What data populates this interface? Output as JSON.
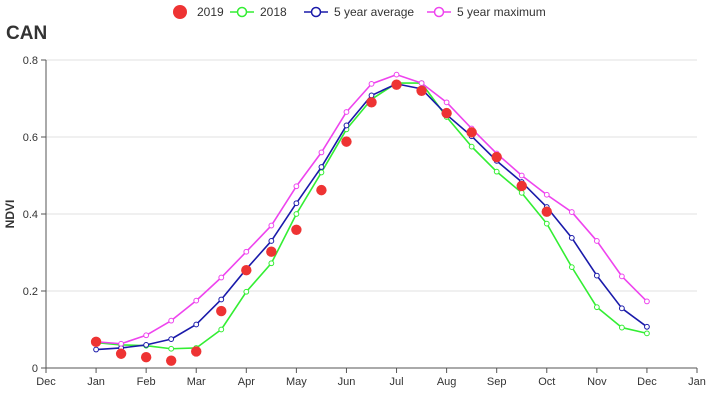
{
  "chart_data": {
    "type": "line",
    "title": "CAN",
    "xlabel": "",
    "ylabel": "NDVI",
    "ylim": [
      0,
      0.8
    ],
    "yticks": [
      "0",
      "0.2",
      "0.4",
      "0.6",
      "0.8"
    ],
    "ytick_values": [
      0,
      0.2,
      0.4,
      0.6,
      0.8
    ],
    "xlim": [
      0,
      13
    ],
    "xticks": [
      "Dec",
      "Jan",
      "Feb",
      "Mar",
      "Apr",
      "May",
      "Jun",
      "Jul",
      "Aug",
      "Sep",
      "Oct",
      "Nov",
      "Dec",
      "Jan"
    ],
    "grid": "horizontal",
    "legend_position": "top",
    "series": [
      {
        "name": "2019",
        "style": "dots",
        "color": "#ee3333",
        "x": [
          1,
          1.5,
          2,
          2.5,
          3,
          3.5,
          4,
          4.5,
          5,
          5.5,
          6,
          6.5,
          7,
          7.5,
          8,
          8.5,
          9,
          9.5,
          10
        ],
        "values": [
          0.068,
          0.037,
          0.028,
          0.019,
          0.043,
          0.148,
          0.254,
          0.302,
          0.359,
          0.462,
          0.588,
          0.69,
          0.736,
          0.72,
          0.662,
          0.612,
          0.548,
          0.473,
          0.406
        ]
      },
      {
        "name": "2018",
        "style": "line",
        "color": "#33ee33",
        "x": [
          1,
          1.5,
          2,
          2.5,
          3,
          3.5,
          4,
          4.5,
          5,
          5.5,
          6,
          6.5,
          7,
          7.5,
          8,
          8.5,
          9,
          9.5,
          10,
          10.5,
          11,
          11.5,
          12
        ],
        "values": [
          0.066,
          0.06,
          0.058,
          0.05,
          0.052,
          0.1,
          0.198,
          0.272,
          0.4,
          0.508,
          0.62,
          0.698,
          0.74,
          0.74,
          0.652,
          0.575,
          0.51,
          0.455,
          0.375,
          0.262,
          0.158,
          0.105,
          0.09
        ]
      },
      {
        "name": "5 year average",
        "style": "line",
        "color": "#1a1aaa",
        "x": [
          1,
          1.5,
          2,
          2.5,
          3,
          3.5,
          4,
          4.5,
          5,
          5.5,
          6,
          6.5,
          7,
          7.5,
          8,
          8.5,
          9,
          9.5,
          10,
          10.5,
          11,
          11.5,
          12
        ],
        "values": [
          0.048,
          0.052,
          0.06,
          0.075,
          0.113,
          0.178,
          0.257,
          0.33,
          0.428,
          0.522,
          0.63,
          0.708,
          0.738,
          0.725,
          0.658,
          0.602,
          0.538,
          0.483,
          0.418,
          0.338,
          0.24,
          0.155,
          0.107
        ]
      },
      {
        "name": "5 year maximum",
        "style": "line",
        "color": "#ee44ee",
        "x": [
          1,
          1.5,
          2,
          2.5,
          3,
          3.5,
          4,
          4.5,
          5,
          5.5,
          6,
          6.5,
          7,
          7.5,
          8,
          8.5,
          9,
          9.5,
          10,
          10.5,
          11,
          11.5,
          12
        ],
        "values": [
          0.068,
          0.063,
          0.085,
          0.123,
          0.175,
          0.235,
          0.302,
          0.37,
          0.472,
          0.56,
          0.665,
          0.738,
          0.762,
          0.74,
          0.69,
          0.622,
          0.557,
          0.5,
          0.45,
          0.405,
          0.33,
          0.238,
          0.173
        ]
      }
    ]
  }
}
